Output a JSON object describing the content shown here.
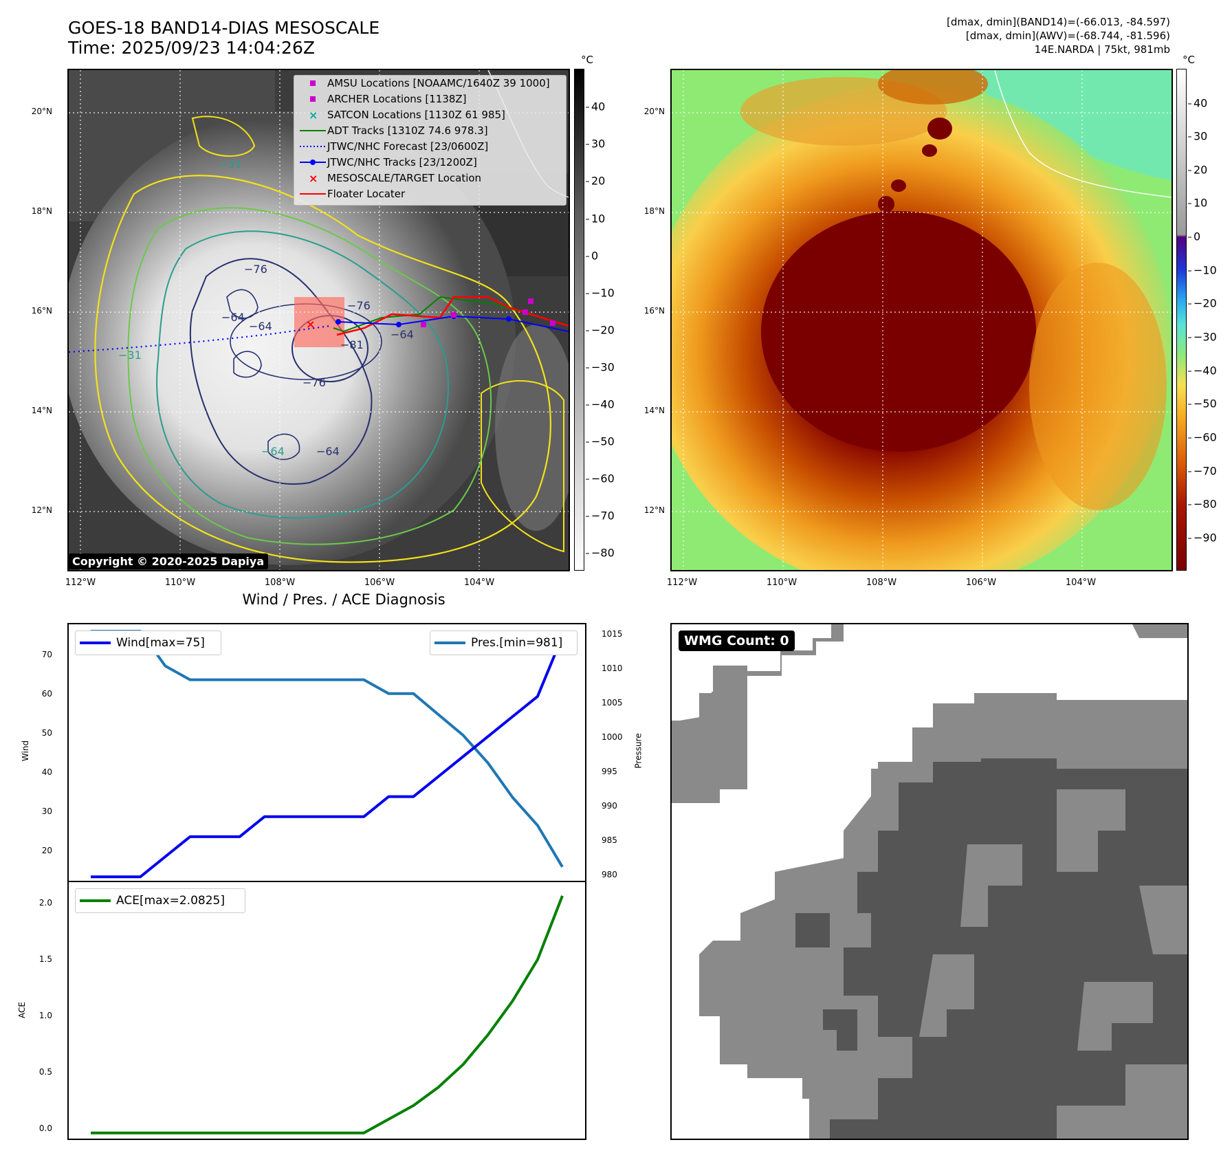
{
  "header": {
    "title_line1": "GOES-18 BAND14-DIAS MESOSCALE",
    "title_line2": "Time: 2025/09/23 14:04:26Z",
    "stats_line1": "[dmax, dmin](BAND14)=(-66.013, -84.597)",
    "stats_line2": "[dmax, dmin](AWV)=(-68.744, -81.596)",
    "stats_line3": "14E.NARDA | 75kt, 981mb"
  },
  "map_axes": {
    "lat_labels": [
      "20°N",
      "18°N",
      "16°N",
      "14°N",
      "12°N"
    ],
    "lon_labels": [
      "112°W",
      "110°W",
      "108°W",
      "106°W",
      "104°W"
    ]
  },
  "colorbar_left": {
    "unit": "°C",
    "ticks": [
      "40",
      "30",
      "20",
      "10",
      "0",
      "−10",
      "−20",
      "−30",
      "−40",
      "−50",
      "−60",
      "−70",
      "−80"
    ]
  },
  "colorbar_right": {
    "unit": "°C",
    "ticks": [
      "40",
      "30",
      "20",
      "10",
      "0",
      "−10",
      "−20",
      "−30",
      "−40",
      "−50",
      "−60",
      "−70",
      "−80",
      "−90"
    ]
  },
  "legend": {
    "amsu": "AMSU Locations [NOAAMC/1640Z 39 1000]",
    "archer": "ARCHER Locations [1138Z]",
    "satcon": "SATCON Locations [1130Z 61 985]",
    "adt": "ADT Tracks [1310Z 74.6 978.3]",
    "forecast": "JTWC/NHC Forecast [23/0600Z]",
    "tracks": "JTWC/NHC Tracks [23/1200Z]",
    "target": "MESOSCALE/TARGET Location",
    "floater": "Floater Locater"
  },
  "contour_labels": [
    "−76",
    "−76",
    "−64",
    "−64",
    "−81",
    "−64",
    "−64",
    "−31",
    "−31",
    "−76",
    "−64"
  ],
  "copyright": "Copyright © 2020-2025 Dapiya",
  "diagnosis": {
    "title": "Wind / Pres. / ACE Diagnosis",
    "wind_label": "Wind",
    "pressure_label": "Pressure",
    "ace_label": "ACE",
    "wind_legend": "Wind[max=75]",
    "pres_legend": "Pres.[min=981]",
    "ace_legend": "ACE[max=2.0825]",
    "wind_ticks": [
      "70",
      "60",
      "50",
      "40",
      "30",
      "20"
    ],
    "pres_ticks": [
      "1015",
      "1010",
      "1005",
      "1000",
      "995",
      "990",
      "985",
      "980"
    ],
    "ace_ticks": [
      "2.0",
      "1.5",
      "1.0",
      "0.5",
      "0.0"
    ]
  },
  "wmg": {
    "label": "WMG Count: 0"
  },
  "colors": {
    "wind": "#0000ee",
    "pressure": "#1f77b4",
    "ace": "#008000",
    "amsu": "#cc00cc",
    "satcon": "#00aaaa",
    "adt": "#008000",
    "tracks": "#0000ff",
    "target": "#ff0000",
    "floater": "#ff0000"
  },
  "chart_data": [
    {
      "type": "line",
      "title": "Wind / Pres. / ACE Diagnosis",
      "ylabel": "Wind",
      "ylim": [
        14,
        78
      ],
      "series": [
        {
          "name": "Wind[max=75]",
          "axis": "left",
          "values": [
            15,
            15,
            15,
            20,
            25,
            25,
            25,
            30,
            30,
            30,
            30,
            30,
            35,
            35,
            40,
            45,
            50,
            55,
            60,
            75
          ]
        },
        {
          "name": "Pres.[min=981]",
          "axis": "right",
          "values": [
            1015,
            1015,
            1015,
            1010,
            1008,
            1008,
            1008,
            1008,
            1008,
            1008,
            1008,
            1008,
            1006,
            1006,
            1003,
            1000,
            996,
            991,
            987,
            981
          ]
        }
      ],
      "y2label": "Pressure",
      "y2lim": [
        979,
        1016
      ]
    },
    {
      "type": "line",
      "ylabel": "ACE",
      "ylim": [
        -0.05,
        2.2
      ],
      "series": [
        {
          "name": "ACE[max=2.0825]",
          "values": [
            0,
            0,
            0,
            0,
            0,
            0,
            0,
            0,
            0,
            0,
            0,
            0,
            0.12,
            0.24,
            0.4,
            0.6,
            0.86,
            1.16,
            1.52,
            2.08
          ]
        }
      ]
    }
  ]
}
